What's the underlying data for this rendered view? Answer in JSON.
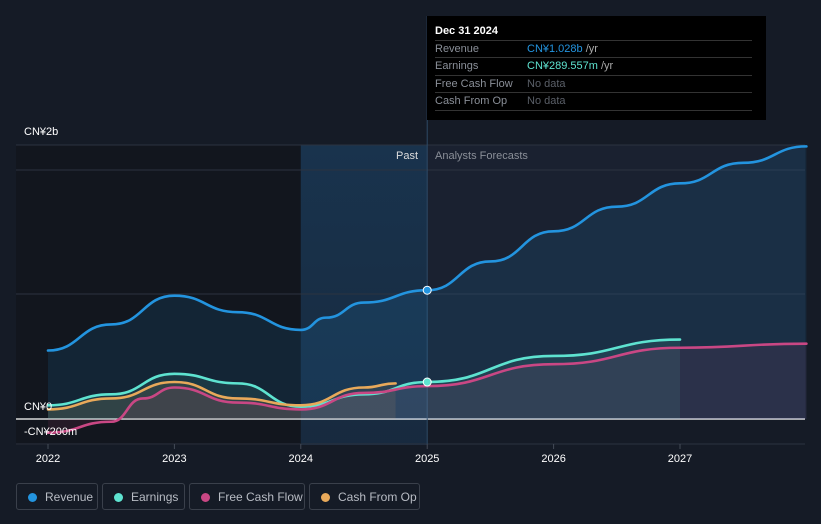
{
  "chart_data": {
    "type": "line",
    "title": "",
    "xlabel": "",
    "ylabel": "",
    "y_unit": "CN¥ billions",
    "ylim": [
      -0.2,
      2.0
    ],
    "xlim": [
      2021.8,
      2028.0
    ],
    "y_tick_labels": [
      "CN¥2b",
      "CN¥0",
      "-CN¥200m"
    ],
    "x_tick_labels": [
      "2022",
      "2023",
      "2024",
      "2025",
      "2026",
      "2027"
    ],
    "x_ticks": [
      2022,
      2023,
      2024,
      2025,
      2026,
      2027
    ],
    "past_label": "Past",
    "forecast_label": "Analysts Forecasts",
    "divider_x": 2025.0,
    "series": [
      {
        "name": "Revenue",
        "color": "#2394df",
        "x": [
          2022.0,
          2022.5,
          2023.0,
          2023.5,
          2024.0,
          2024.2,
          2024.5,
          2025.0,
          2025.5,
          2026.0,
          2026.5,
          2027.0,
          2027.5,
          2028.0
        ],
        "values": [
          0.5,
          0.69,
          0.9,
          0.78,
          0.65,
          0.74,
          0.85,
          0.94,
          1.15,
          1.37,
          1.55,
          1.72,
          1.87,
          1.99
        ]
      },
      {
        "name": "Earnings",
        "color": "#5ee3d0",
        "x": [
          2022.0,
          2022.5,
          2023.0,
          2023.5,
          2024.0,
          2024.5,
          2025.0,
          2026.0,
          2027.0
        ],
        "values": [
          0.1,
          0.18,
          0.33,
          0.26,
          0.09,
          0.18,
          0.27,
          0.46,
          0.58
        ]
      },
      {
        "name": "Free Cash Flow",
        "color": "#c94784",
        "x": [
          2022.0,
          2022.5,
          2022.75,
          2023.0,
          2023.5,
          2024.0,
          2024.5,
          2025.0,
          2026.0,
          2027.0,
          2028.0
        ],
        "values": [
          -0.1,
          -0.02,
          0.15,
          0.23,
          0.12,
          0.07,
          0.19,
          0.24,
          0.4,
          0.52,
          0.55
        ]
      },
      {
        "name": "Cash From Op",
        "color": "#e8a95a",
        "x": [
          2022.0,
          2022.5,
          2023.0,
          2023.5,
          2024.0,
          2024.5,
          2024.75
        ],
        "values": [
          0.07,
          0.15,
          0.27,
          0.15,
          0.1,
          0.23,
          0.26
        ]
      }
    ]
  },
  "tooltip": {
    "date": "Dec 31 2024",
    "rows": [
      {
        "label": "Revenue",
        "value": "CN¥1.028b",
        "unit": " /yr",
        "color": "#2394df"
      },
      {
        "label": "Earnings",
        "value": "CN¥289.557m",
        "unit": " /yr",
        "color": "#5ee3d0"
      },
      {
        "label": "Free Cash Flow",
        "value": "No data",
        "unit": "",
        "color": "#5a5f68"
      },
      {
        "label": "Cash From Op",
        "value": "No data",
        "unit": "",
        "color": "#5a5f68"
      }
    ]
  },
  "legend": [
    {
      "label": "Revenue",
      "color": "#2394df"
    },
    {
      "label": "Earnings",
      "color": "#5ee3d0"
    },
    {
      "label": "Free Cash Flow",
      "color": "#c94784"
    },
    {
      "label": "Cash From Op",
      "color": "#e8a95a"
    }
  ]
}
